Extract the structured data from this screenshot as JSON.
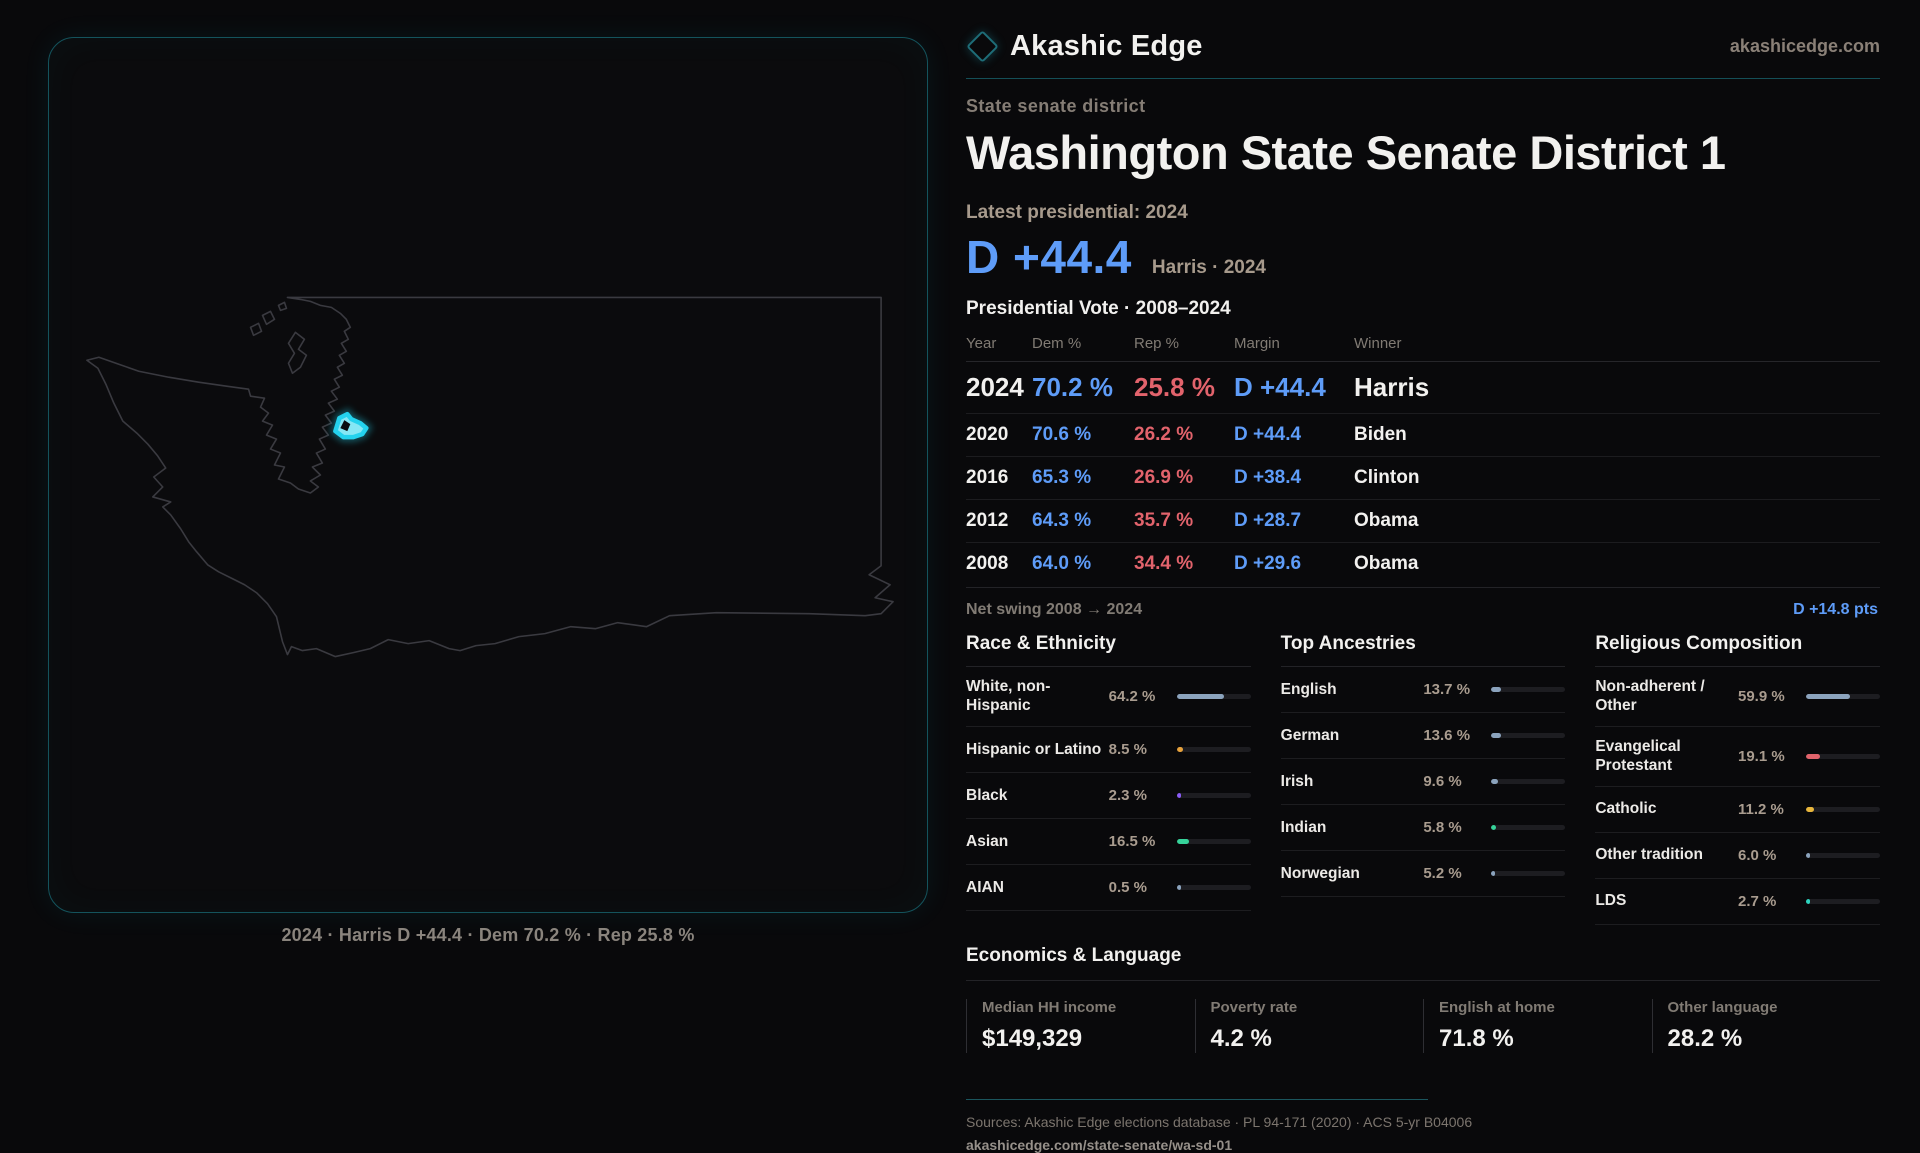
{
  "brand": {
    "name": "Akashic Edge",
    "domain": "akashicedge.com"
  },
  "eyebrow": "State senate district",
  "title": "Washington State Senate District 1",
  "latest_label": "Latest presidential: 2024",
  "headline": {
    "margin": "D +44.4",
    "detail": "Harris · 2024"
  },
  "table": {
    "title": "Presidential Vote · 2008–2024",
    "columns": {
      "year": "Year",
      "dem": "Dem %",
      "rep": "Rep %",
      "margin": "Margin",
      "winner": "Winner"
    },
    "rows": [
      {
        "year": "2024",
        "dem": "70.2 %",
        "rep": "25.8 %",
        "margin": "D +44.4",
        "winner": "Harris"
      },
      {
        "year": "2020",
        "dem": "70.6 %",
        "rep": "26.2 %",
        "margin": "D +44.4",
        "winner": "Biden"
      },
      {
        "year": "2016",
        "dem": "65.3 %",
        "rep": "26.9 %",
        "margin": "D +38.4",
        "winner": "Clinton"
      },
      {
        "year": "2012",
        "dem": "64.3 %",
        "rep": "35.7 %",
        "margin": "D +28.7",
        "winner": "Obama"
      },
      {
        "year": "2008",
        "dem": "64.0 %",
        "rep": "34.4 %",
        "margin": "D +29.6",
        "winner": "Obama"
      }
    ]
  },
  "net_swing": {
    "label": "Net swing 2008 → 2024",
    "value": "D +14.8 pts"
  },
  "demographics": [
    {
      "title": "Race & Ethnicity",
      "rows": [
        {
          "label": "White, non-Hispanic",
          "value": "64.2 %",
          "pct": 64.2,
          "color": "#8ba3bd"
        },
        {
          "label": "Hispanic or Latino",
          "value": "8.5 %",
          "pct": 8.5,
          "color": "#e8a23c"
        },
        {
          "label": "Black",
          "value": "2.3 %",
          "pct": 2.3,
          "color": "#8b5cf6"
        },
        {
          "label": "Asian",
          "value": "16.5 %",
          "pct": 16.5,
          "color": "#36d39a"
        },
        {
          "label": "AIAN",
          "value": "0.5 %",
          "pct": 0.5,
          "color": "#8ba3bd"
        }
      ]
    },
    {
      "title": "Top Ancestries",
      "rows": [
        {
          "label": "English",
          "value": "13.7 %",
          "pct": 13.7,
          "color": "#8ba3bd"
        },
        {
          "label": "German",
          "value": "13.6 %",
          "pct": 13.6,
          "color": "#8ba3bd"
        },
        {
          "label": "Irish",
          "value": "9.6 %",
          "pct": 9.6,
          "color": "#8ba3bd"
        },
        {
          "label": "Indian",
          "value": "5.8 %",
          "pct": 5.8,
          "color": "#36d39a"
        },
        {
          "label": "Norwegian",
          "value": "5.2 %",
          "pct": 5.2,
          "color": "#8ba3bd"
        }
      ]
    },
    {
      "title": "Religious Composition",
      "rows": [
        {
          "label": "Non-adherent / Other",
          "value": "59.9 %",
          "pct": 59.9,
          "color": "#8ba3bd"
        },
        {
          "label": "Evangelical Protestant",
          "value": "19.1 %",
          "pct": 19.1,
          "color": "#e0636b"
        },
        {
          "label": "Catholic",
          "value": "11.2 %",
          "pct": 11.2,
          "color": "#e8b63c"
        },
        {
          "label": "Other tradition",
          "value": "6.0 %",
          "pct": 6.0,
          "color": "#8ba3bd"
        },
        {
          "label": "LDS",
          "value": "2.7 %",
          "pct": 2.7,
          "color": "#2dd4bf"
        }
      ]
    }
  ],
  "economics": {
    "title": "Economics & Language",
    "stats": [
      {
        "label": "Median HH income",
        "value": "$149,329"
      },
      {
        "label": "Poverty rate",
        "value": "4.2 %"
      },
      {
        "label": "English at home",
        "value": "71.8 %"
      },
      {
        "label": "Other language",
        "value": "28.2 %"
      }
    ]
  },
  "footer": {
    "sources": "Sources: Akashic Edge elections database · PL 94-171 (2020) · ACS 5-yr B04006",
    "permalink": "akashicedge.com/state-senate/wa-sd-01"
  },
  "map": {
    "caption": "2024 · Harris D +44.4 · Dem 70.2 % · Rep 25.8 %"
  },
  "colors": {
    "dem": "#5e9cf8",
    "rep": "#e2636c",
    "accent": "#22d3ee",
    "outline": "#3a3a40",
    "panel-border": "#14535c",
    "bar-track": "#1d1d21",
    "text": "#f2f1ef",
    "muted": "#857d75",
    "value": "#a99c8f"
  }
}
